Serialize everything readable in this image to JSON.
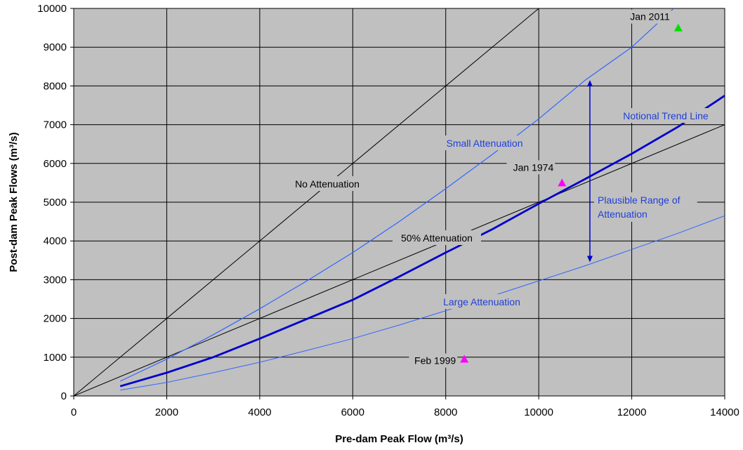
{
  "chart_data": {
    "type": "line",
    "xlabel": "Pre-dam Peak Flow (m³/s)",
    "ylabel": "Post-dam Peak Flows (m³/s)",
    "xlim": [
      0,
      14000
    ],
    "ylim": [
      0,
      10000
    ],
    "x_ticks": [
      "0",
      "2000",
      "4000",
      "6000",
      "8000",
      "10000",
      "12000",
      "14000"
    ],
    "y_ticks": [
      "0",
      "1000",
      "2000",
      "3000",
      "4000",
      "5000",
      "6000",
      "7000",
      "8000",
      "9000",
      "10000"
    ],
    "grid": true,
    "plot_background": "#c0c0c0",
    "series": [
      {
        "label": "No Attenuation",
        "color": "#000000",
        "x": [
          0,
          10100
        ],
        "y": [
          0,
          10100
        ]
      },
      {
        "label": "50% Attenuation",
        "color": "#000000",
        "x": [
          0,
          14000
        ],
        "y": [
          0,
          7000
        ]
      },
      {
        "label": "Small Attenuation",
        "color": "#3366ff",
        "x": [
          1000,
          2000,
          3000,
          4000,
          5000,
          6000,
          7000,
          8000,
          9000,
          10000,
          11000,
          12000,
          12900
        ],
        "y": [
          380,
          950,
          1580,
          2250,
          2960,
          3700,
          4500,
          5350,
          6230,
          7150,
          8150,
          9000,
          10000
        ]
      },
      {
        "label": "Notional Trend Line",
        "color": "#0000cc",
        "x": [
          1000,
          2000,
          3000,
          4000,
          5000,
          6000,
          7000,
          8000,
          9000,
          10000,
          11000,
          12000,
          13000,
          14000
        ],
        "y": [
          250,
          600,
          1000,
          1480,
          1980,
          2480,
          3080,
          3700,
          4300,
          4960,
          5600,
          6250,
          6950,
          7750
        ]
      },
      {
        "label": "Large Attenuation",
        "color": "#3366ff",
        "x": [
          1000,
          2000,
          3000,
          4000,
          5000,
          6000,
          7000,
          8000,
          9000,
          10000,
          11000,
          12000,
          13000,
          14000
        ],
        "y": [
          150,
          350,
          600,
          870,
          1170,
          1480,
          1830,
          2200,
          2580,
          2970,
          3360,
          3780,
          4200,
          4650
        ]
      }
    ],
    "events": [
      {
        "label": "Jan 2011",
        "x": 13000,
        "y": 9500,
        "color": "#00dd00"
      },
      {
        "label": "Jan 1974",
        "x": 10500,
        "y": 5500,
        "color": "#ff00ff"
      },
      {
        "label": "Feb 1999",
        "x": 8400,
        "y": 950,
        "color": "#ff00ff"
      }
    ],
    "range_arrow": {
      "label_line1": "Plausible Range of",
      "label_line2": "Attenuation",
      "x": 11100,
      "y_top": 8150,
      "y_bottom": 3450,
      "color": "#0000cc"
    }
  }
}
